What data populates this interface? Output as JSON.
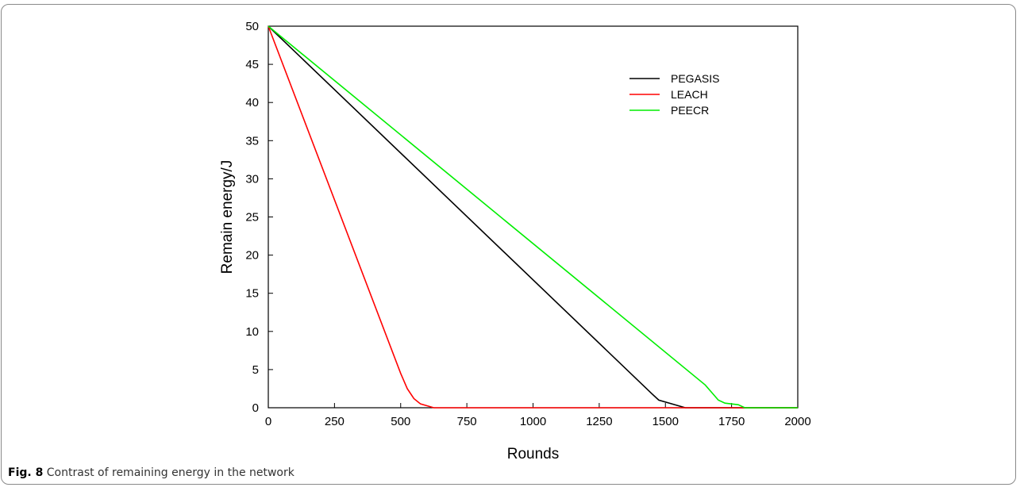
{
  "caption": {
    "label": "Fig. 8",
    "text": "Contrast of remaining energy in the network"
  },
  "chart_data": {
    "type": "line",
    "title": "",
    "xlabel": "Rounds",
    "ylabel": "Remain energy/J",
    "xlim": [
      0,
      2000
    ],
    "ylim": [
      0,
      50
    ],
    "xticks": [
      0,
      250,
      500,
      750,
      1000,
      1250,
      1500,
      1750,
      2000
    ],
    "yticks": [
      0,
      5,
      10,
      15,
      20,
      25,
      30,
      35,
      40,
      45,
      50
    ],
    "grid": false,
    "legend_position": "top-right",
    "series": [
      {
        "name": "PEGASIS",
        "color": "#000000",
        "x": [
          0,
          1450,
          1475,
          1575,
          2000
        ],
        "y": [
          50,
          1.8,
          1.0,
          0,
          0
        ]
      },
      {
        "name": "LEACH",
        "color": "#ff0000",
        "x": [
          0,
          500,
          525,
          550,
          575,
          625,
          2000
        ],
        "y": [
          50,
          4.5,
          2.5,
          1.2,
          0.5,
          0,
          0
        ]
      },
      {
        "name": "PEECR",
        "color": "#00ee00",
        "x": [
          0,
          1650,
          1675,
          1700,
          1725,
          1775,
          1800,
          2000
        ],
        "y": [
          50,
          3.0,
          2.0,
          1.0,
          0.6,
          0.4,
          0,
          0
        ]
      }
    ]
  }
}
